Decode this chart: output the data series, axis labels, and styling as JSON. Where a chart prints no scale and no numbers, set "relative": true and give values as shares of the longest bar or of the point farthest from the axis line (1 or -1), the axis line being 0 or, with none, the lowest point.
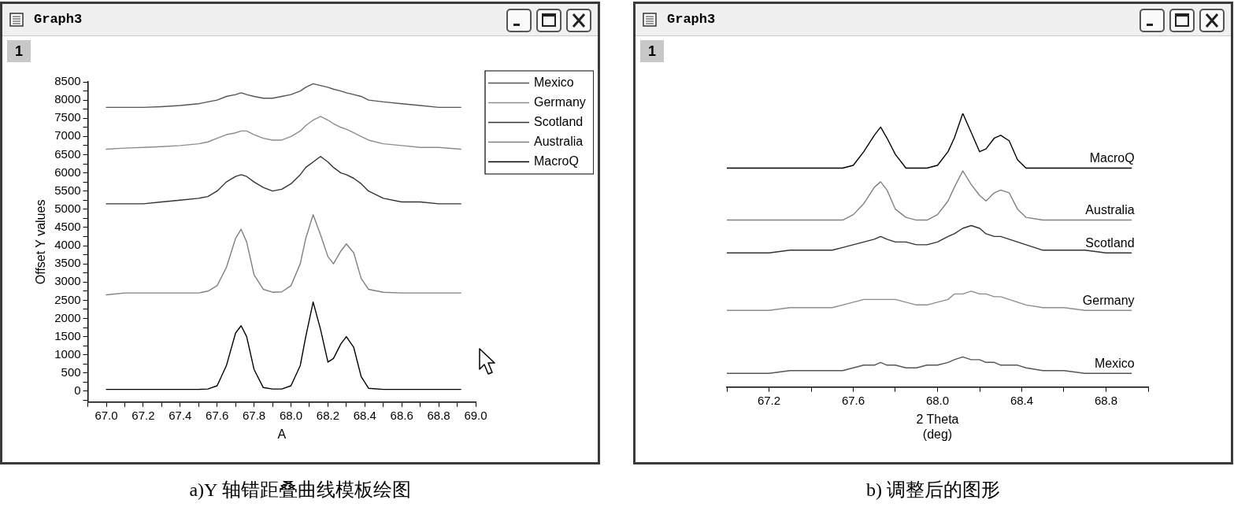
{
  "chart_data": [
    {
      "type": "line",
      "title": "Graph3",
      "annotations": [
        "1",
        "a)Y 轴错距叠曲线模板绘图"
      ],
      "xlabel": "A",
      "ylabel": "Offset Y values",
      "legend": "top right",
      "grid": false,
      "x": [
        67.0,
        67.1,
        67.2,
        67.3,
        67.4,
        67.5,
        67.55,
        67.6,
        67.65,
        67.7,
        67.73,
        67.76,
        67.8,
        67.85,
        67.9,
        67.95,
        68.0,
        68.05,
        68.08,
        68.12,
        68.16,
        68.2,
        68.23,
        68.27,
        68.3,
        68.34,
        68.38,
        68.42,
        68.5,
        68.6,
        68.7,
        68.8,
        68.92
      ],
      "xlim": [
        66.9,
        69.0
      ],
      "xticks": [
        {
          "value": 66.9,
          "label": null
        },
        {
          "value": 67,
          "label": "67.0"
        },
        {
          "value": 67.1,
          "label": null
        },
        67.2,
        {
          "value": 67.3,
          "label": null
        },
        67.4,
        {
          "value": 67.5,
          "label": null
        },
        67.6,
        {
          "value": 67.7,
          "label": null
        },
        67.8,
        {
          "value": 67.9,
          "label": null
        },
        {
          "value": 68,
          "label": "68.0"
        },
        {
          "value": 68.1,
          "label": null
        },
        68.2,
        {
          "value": 68.3,
          "label": null
        },
        68.4,
        {
          "value": 68.5,
          "label": null
        },
        68.6,
        {
          "value": 68.7,
          "label": null
        },
        68.8,
        {
          "value": 68.9,
          "label": null
        },
        {
          "value": 69,
          "label": "69.0"
        }
      ],
      "ylim": [
        -300,
        8500
      ],
      "yticks": [
        {
          "value": -250,
          "label": null
        },
        0,
        {
          "value": 250,
          "label": null
        },
        500,
        {
          "value": 750,
          "label": null
        },
        1000,
        {
          "value": 1250,
          "label": null
        },
        1500,
        {
          "value": 1750,
          "label": null
        },
        2000,
        {
          "value": 2250,
          "label": null
        },
        2500,
        {
          "value": 2750,
          "label": null
        },
        3000,
        {
          "value": 3250,
          "label": null
        },
        3500,
        {
          "value": 3750,
          "label": null
        },
        4000,
        {
          "value": 4250,
          "label": null
        },
        4500,
        {
          "value": 4750,
          "label": null
        },
        5000,
        {
          "value": 5250,
          "label": null
        },
        5500,
        {
          "value": 5750,
          "label": null
        },
        6000,
        {
          "value": 6250,
          "label": null
        },
        6500,
        {
          "value": 6750,
          "label": null
        },
        7000,
        {
          "value": 7250,
          "label": null
        },
        7500,
        {
          "value": 7750,
          "label": null
        },
        8000,
        {
          "value": 8250,
          "label": null
        },
        8500
      ],
      "series": [
        {
          "name": "Mexico",
          "color": "#555555",
          "values": [
            7800,
            7800,
            7800,
            7820,
            7850,
            7900,
            7950,
            8000,
            8100,
            8150,
            8200,
            8150,
            8100,
            8050,
            8050,
            8100,
            8150,
            8250,
            8350,
            8450,
            8400,
            8350,
            8300,
            8250,
            8200,
            8150,
            8100,
            8000,
            7950,
            7900,
            7850,
            7800,
            7800
          ]
        },
        {
          "name": "Germany",
          "color": "#8c8c8c",
          "values": [
            6650,
            6680,
            6700,
            6720,
            6750,
            6800,
            6850,
            6950,
            7050,
            7100,
            7150,
            7150,
            7050,
            6950,
            6900,
            6900,
            7000,
            7150,
            7300,
            7450,
            7550,
            7450,
            7350,
            7250,
            7200,
            7100,
            7000,
            6900,
            6800,
            6750,
            6700,
            6700,
            6650
          ]
        },
        {
          "name": "Scotland",
          "color": "#333333",
          "values": [
            5150,
            5150,
            5150,
            5200,
            5250,
            5300,
            5350,
            5500,
            5750,
            5900,
            5950,
            5900,
            5750,
            5600,
            5500,
            5550,
            5700,
            5950,
            6150,
            6300,
            6450,
            6300,
            6150,
            6000,
            5950,
            5850,
            5700,
            5500,
            5300,
            5200,
            5200,
            5150,
            5150
          ]
        },
        {
          "name": "Australia",
          "color": "#808080",
          "values": [
            2650,
            2700,
            2700,
            2700,
            2700,
            2700,
            2750,
            2900,
            3400,
            4200,
            4450,
            4100,
            3200,
            2800,
            2720,
            2730,
            2900,
            3500,
            4200,
            4850,
            4300,
            3700,
            3500,
            3850,
            4050,
            3800,
            3100,
            2800,
            2720,
            2700,
            2700,
            2700,
            2700
          ]
        },
        {
          "name": "MacroQ",
          "color": "#000000",
          "values": [
            50,
            50,
            50,
            50,
            50,
            50,
            60,
            150,
            700,
            1600,
            1800,
            1500,
            600,
            100,
            60,
            60,
            150,
            700,
            1500,
            2450,
            1700,
            800,
            900,
            1300,
            1500,
            1200,
            400,
            80,
            50,
            50,
            50,
            50,
            50
          ]
        }
      ]
    },
    {
      "type": "line",
      "title": "Graph3",
      "annotations": [
        "1",
        "b) 调整后的图形"
      ],
      "xlabel": "2 Theta\n(deg)",
      "relative": true,
      "legend": false,
      "grid": false,
      "tick_labels": "x",
      "x": [
        67.0,
        67.1,
        67.2,
        67.3,
        67.4,
        67.5,
        67.55,
        67.6,
        67.65,
        67.7,
        67.73,
        67.76,
        67.8,
        67.85,
        67.9,
        67.95,
        68.0,
        68.05,
        68.08,
        68.12,
        68.16,
        68.2,
        68.23,
        68.27,
        68.3,
        68.34,
        68.38,
        68.42,
        68.5,
        68.6,
        68.7,
        68.8,
        68.92
      ],
      "xlim": [
        67.0,
        69.0
      ],
      "xticks": [
        {
          "value": 67,
          "label": null
        },
        67.2,
        {
          "value": 67.4,
          "label": null
        },
        67.6,
        {
          "value": 67.8,
          "label": null
        },
        {
          "value": 68,
          "label": "68.0"
        },
        {
          "value": 68.2,
          "label": null
        },
        68.4,
        {
          "value": 68.6,
          "label": null
        },
        68.8,
        {
          "value": 69,
          "label": null
        }
      ],
      "series": [
        {
          "name": "Mexico",
          "color": "#555555",
          "values": [
            0.05,
            0.05,
            0.05,
            0.06,
            0.06,
            0.06,
            0.06,
            0.07,
            0.08,
            0.08,
            0.09,
            0.08,
            0.08,
            0.07,
            0.07,
            0.08,
            0.08,
            0.09,
            0.1,
            0.11,
            0.1,
            0.1,
            0.09,
            0.09,
            0.08,
            0.08,
            0.08,
            0.07,
            0.06,
            0.06,
            0.05,
            0.05,
            0.05
          ]
        },
        {
          "name": "Germany",
          "color": "#8c8c8c",
          "values": [
            0.28,
            0.28,
            0.28,
            0.29,
            0.29,
            0.29,
            0.3,
            0.31,
            0.32,
            0.32,
            0.32,
            0.32,
            0.32,
            0.31,
            0.3,
            0.3,
            0.31,
            0.32,
            0.34,
            0.34,
            0.35,
            0.34,
            0.34,
            0.33,
            0.33,
            0.32,
            0.31,
            0.3,
            0.29,
            0.29,
            0.28,
            0.28,
            0.28
          ]
        },
        {
          "name": "Scotland",
          "color": "#333333",
          "values": [
            0.49,
            0.49,
            0.49,
            0.5,
            0.5,
            0.5,
            0.51,
            0.52,
            0.53,
            0.54,
            0.55,
            0.54,
            0.53,
            0.53,
            0.52,
            0.52,
            0.53,
            0.55,
            0.56,
            0.58,
            0.59,
            0.58,
            0.56,
            0.55,
            0.55,
            0.54,
            0.53,
            0.52,
            0.5,
            0.5,
            0.5,
            0.49,
            0.49
          ]
        },
        {
          "name": "Australia",
          "color": "#808080",
          "values": [
            0.61,
            0.61,
            0.61,
            0.61,
            0.61,
            0.61,
            0.61,
            0.63,
            0.67,
            0.73,
            0.75,
            0.72,
            0.65,
            0.62,
            0.61,
            0.61,
            0.63,
            0.68,
            0.73,
            0.79,
            0.74,
            0.7,
            0.68,
            0.71,
            0.72,
            0.71,
            0.65,
            0.62,
            0.61,
            0.61,
            0.61,
            0.61,
            0.61
          ]
        },
        {
          "name": "MacroQ",
          "color": "#000000",
          "values": [
            0.8,
            0.8,
            0.8,
            0.8,
            0.8,
            0.8,
            0.8,
            0.81,
            0.86,
            0.92,
            0.95,
            0.91,
            0.85,
            0.8,
            0.8,
            0.8,
            0.81,
            0.86,
            0.91,
            1,
            0.93,
            0.86,
            0.87,
            0.91,
            0.92,
            0.9,
            0.83,
            0.8,
            0.8,
            0.8,
            0.8,
            0.8,
            0.8
          ]
        }
      ]
    }
  ]
}
